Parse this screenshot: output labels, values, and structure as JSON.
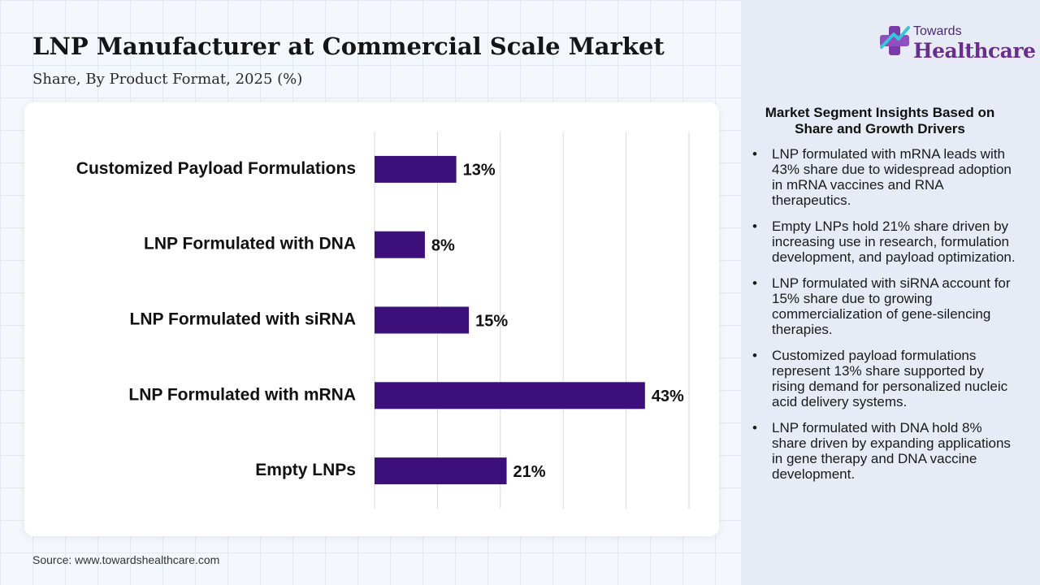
{
  "header": {
    "title": "LNP Manufacturer at Commercial Scale Market",
    "subtitle": "Share, By Product Format, 2025 (%)"
  },
  "brand": {
    "logo_top": "Towards",
    "logo_main": "Healthcare",
    "logo_icon": "cross-logo-icon"
  },
  "chart_data": {
    "type": "bar",
    "orientation": "horizontal",
    "categories": [
      "Customized Payload Formulations",
      "LNP Formulated with DNA",
      "LNP Formulated with siRNA",
      "LNP Formulated with mRNA",
      "Empty LNPs"
    ],
    "values": [
      13,
      8,
      15,
      43,
      21
    ],
    "data_labels": [
      "13%",
      "8%",
      "15%",
      "43%",
      "21%"
    ],
    "xlim": [
      0,
      50
    ],
    "grid": true,
    "bar_color": "#3d0f7a"
  },
  "insights": {
    "title": "Market Segment Insights Based on Share and Growth Drivers",
    "items": [
      "LNP formulated with mRNA leads with 43% share due to widespread adoption in mRNA vaccines and RNA therapeutics.",
      "Empty LNPs hold 21% share driven by increasing use in research, formulation development, and payload optimization.",
      "LNP formulated with siRNA account for 15% share due to growing commercialization of gene-silencing therapies.",
      "Customized payload formulations represent 13% share supported by rising demand for personalized nucleic acid delivery systems.",
      "LNP formulated with DNA hold 8% share driven by expanding applications in gene therapy and DNA vaccine development."
    ]
  },
  "footer": {
    "source": "Source: www.towardshealthcare.com"
  }
}
